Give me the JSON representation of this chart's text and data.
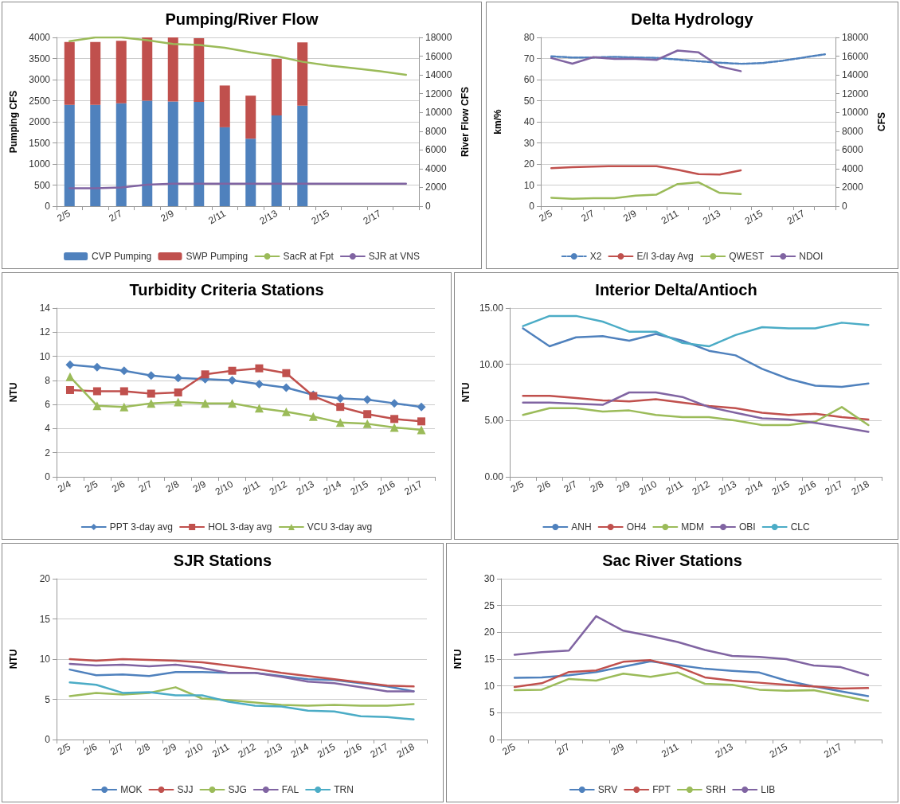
{
  "chart_data": [
    {
      "type": "bar",
      "title": "Pumping/River Flow",
      "ylabel": "Pumping CFS",
      "y2label": "River Flow CFS",
      "stacked": true,
      "grid": "y",
      "legend": "bottom",
      "categories": [
        "2/5",
        null,
        "2/7",
        null,
        "2/9",
        null,
        "2/11",
        null,
        "2/13",
        null,
        "2/15",
        null,
        "2/17",
        null
      ],
      "ylim": [
        0,
        4000
      ],
      "yticks": [
        0,
        500,
        1000,
        1500,
        2000,
        2500,
        3000,
        3500,
        4000
      ],
      "y2lim": [
        0,
        18000
      ],
      "y2ticks": [
        0,
        2000,
        4000,
        6000,
        8000,
        10000,
        12000,
        14000,
        16000,
        18000
      ],
      "series": [
        {
          "name": "CVP Pumping",
          "color": "#4f81bd",
          "values": [
            2400,
            2400,
            2440,
            2500,
            2480,
            2470,
            1870,
            1600,
            2150,
            2380,
            null,
            null,
            null,
            null
          ]
        },
        {
          "name": "SWP Pumping",
          "color": "#c0504d",
          "values": [
            1490,
            1490,
            1480,
            1500,
            1520,
            1510,
            990,
            1020,
            1340,
            1500,
            null,
            null,
            null,
            null
          ]
        },
        {
          "name": "SacR at Fpt",
          "type": "line",
          "axis": "y2",
          "color": "#9bbb59",
          "values": [
            17600,
            18000,
            18000,
            17700,
            17300,
            17200,
            16900,
            16400,
            16000,
            15400,
            15000,
            14700,
            14400,
            14000
          ]
        },
        {
          "name": "SJR at VNS",
          "type": "line",
          "axis": "y2",
          "color": "#8064a2",
          "values": [
            1900,
            1900,
            2000,
            2300,
            2400,
            2400,
            2400,
            2400,
            2400,
            2400,
            2400,
            2400,
            2400,
            2400
          ]
        }
      ]
    },
    {
      "type": "line",
      "title": "Delta Hydrology",
      "ylabel": "km/%",
      "y2label": "CFS",
      "grid": "y",
      "legend": "bottom",
      "categories": [
        "2/5",
        null,
        "2/7",
        null,
        "2/9",
        null,
        "2/11",
        null,
        "2/13",
        null,
        "2/15",
        null,
        "2/17",
        null
      ],
      "ylim": [
        0,
        80
      ],
      "yticks": [
        0,
        10,
        20,
        30,
        40,
        50,
        60,
        70,
        80
      ],
      "y2lim": [
        0,
        18000
      ],
      "y2ticks": [
        0,
        2000,
        4000,
        6000,
        8000,
        10000,
        12000,
        14000,
        16000,
        18000
      ],
      "series": [
        {
          "name": "X2",
          "color": "#4f81bd",
          "line_style": "dashed",
          "values": [
            71,
            70.5,
            70.5,
            70.8,
            70.5,
            70.3,
            69.5,
            68.7,
            68,
            67.5,
            67.8,
            69,
            70.5,
            72
          ]
        },
        {
          "name": "E/I 3-day Avg",
          "color": "#c0504d",
          "values": [
            18,
            18.5,
            18.8,
            19,
            19,
            19,
            17.3,
            15.2,
            15,
            17,
            null,
            null,
            null,
            null
          ]
        },
        {
          "name": "QWEST",
          "color": "#9bbb59",
          "values": [
            4,
            3.5,
            3.8,
            3.8,
            5,
            5.5,
            10.5,
            11.3,
            6.3,
            5.8,
            null,
            null,
            null,
            null
          ]
        },
        {
          "name": "NDOI",
          "color": "#8064a2",
          "axis": "y2",
          "values": [
            15800,
            15200,
            15900,
            15700,
            15700,
            15600,
            16600,
            16400,
            14900,
            14400,
            null,
            null,
            null,
            null
          ]
        }
      ]
    },
    {
      "type": "line",
      "title": "Turbidity Criteria Stations",
      "ylabel": "NTU",
      "grid": "y",
      "legend": "bottom",
      "categories": [
        "2/4",
        "2/5",
        "2/6",
        "2/7",
        "2/8",
        "2/9",
        "2/10",
        "2/11",
        "2/12",
        "2/13",
        "2/14",
        "2/15",
        "2/16",
        "2/17"
      ],
      "ylim": [
        0,
        14
      ],
      "yticks": [
        0,
        2,
        4,
        6,
        8,
        10,
        12,
        14
      ],
      "series": [
        {
          "name": "PPT 3-day avg",
          "color": "#4f81bd",
          "marker": "diamond",
          "values": [
            9.3,
            9.1,
            8.8,
            8.4,
            8.2,
            8.1,
            8.0,
            7.7,
            7.4,
            6.8,
            6.5,
            6.4,
            6.1,
            5.8
          ]
        },
        {
          "name": "HOL 3-day avg",
          "color": "#c0504d",
          "marker": "square",
          "values": [
            7.2,
            7.1,
            7.1,
            6.9,
            7.0,
            8.5,
            8.8,
            9.0,
            8.6,
            6.7,
            5.8,
            5.2,
            4.8,
            4.6
          ]
        },
        {
          "name": "VCU 3-day avg",
          "color": "#9bbb59",
          "marker": "triangle",
          "values": [
            8.3,
            5.9,
            5.8,
            6.1,
            6.2,
            6.1,
            6.1,
            5.7,
            5.4,
            5.0,
            4.5,
            4.4,
            4.1,
            3.9
          ]
        }
      ]
    },
    {
      "type": "line",
      "title": "Interior Delta/Antioch",
      "ylabel": "NTU",
      "grid": "y",
      "legend": "bottom",
      "categories": [
        "2/5",
        "2/6",
        "2/7",
        "2/8",
        "2/9",
        "2/10",
        "2/11",
        "2/12",
        "2/13",
        "2/14",
        "2/15",
        "2/16",
        "2/17",
        "2/18"
      ],
      "ylim": [
        0,
        15
      ],
      "yticks": [
        {
          "value": 0,
          "label": "0.00"
        },
        {
          "value": 5,
          "label": "5.00"
        },
        {
          "value": 10,
          "label": "10.00"
        },
        {
          "value": 15,
          "label": "15.00"
        }
      ],
      "series": [
        {
          "name": "ANH",
          "color": "#4f81bd",
          "values": [
            13.2,
            11.6,
            12.4,
            12.5,
            12.1,
            12.7,
            12.1,
            11.2,
            10.8,
            9.6,
            8.7,
            8.1,
            8.0,
            8.3
          ]
        },
        {
          "name": "OH4",
          "color": "#c0504d",
          "values": [
            7.2,
            7.2,
            7.0,
            6.8,
            6.7,
            6.9,
            6.6,
            6.3,
            6.1,
            5.7,
            5.5,
            5.6,
            5.3,
            5.1
          ]
        },
        {
          "name": "MDM",
          "color": "#9bbb59",
          "values": [
            5.5,
            6.1,
            6.1,
            5.8,
            5.9,
            5.5,
            5.3,
            5.3,
            5.0,
            4.6,
            4.6,
            4.9,
            6.2,
            4.6
          ]
        },
        {
          "name": "OBI",
          "color": "#8064a2",
          "values": [
            6.6,
            6.6,
            6.5,
            6.4,
            7.5,
            7.5,
            7.1,
            6.2,
            5.7,
            5.2,
            5.1,
            4.8,
            4.4,
            4.0
          ]
        },
        {
          "name": "CLC",
          "color": "#4bacc6",
          "values": [
            13.4,
            14.3,
            14.3,
            13.8,
            12.9,
            12.9,
            11.9,
            11.6,
            12.6,
            13.3,
            13.2,
            13.2,
            13.7,
            13.5
          ]
        }
      ]
    },
    {
      "type": "line",
      "title": "SJR Stations",
      "ylabel": "NTU",
      "grid": "y",
      "legend": "bottom",
      "categories": [
        "2/5",
        "2/6",
        "2/7",
        "2/8",
        "2/9",
        "2/10",
        "2/11",
        "2/12",
        "2/13",
        "2/14",
        "2/15",
        "2/16",
        "2/17",
        "2/18"
      ],
      "ylim": [
        0,
        20
      ],
      "yticks": [
        0,
        5,
        10,
        15,
        20
      ],
      "series": [
        {
          "name": "MOK",
          "color": "#4f81bd",
          "values": [
            8.7,
            8.0,
            8.1,
            7.9,
            8.4,
            8.4,
            8.3,
            8.3,
            7.9,
            7.5,
            7.4,
            7.0,
            6.6,
            6.0
          ]
        },
        {
          "name": "SJJ",
          "color": "#c0504d",
          "values": [
            10.0,
            9.8,
            10.0,
            9.9,
            9.8,
            9.6,
            9.2,
            8.8,
            8.3,
            7.9,
            7.5,
            7.1,
            6.7,
            6.6
          ]
        },
        {
          "name": "SJG",
          "color": "#9bbb59",
          "values": [
            5.4,
            5.8,
            5.6,
            5.8,
            6.5,
            5.1,
            4.9,
            4.6,
            4.3,
            4.2,
            4.3,
            4.2,
            4.2,
            4.4
          ]
        },
        {
          "name": "FAL",
          "color": "#8064a2",
          "values": [
            9.4,
            9.2,
            9.3,
            9.1,
            9.3,
            8.9,
            8.3,
            8.3,
            7.8,
            7.2,
            7.0,
            6.5,
            6.0,
            6.0
          ]
        },
        {
          "name": "TRN",
          "color": "#4bacc6",
          "values": [
            7.1,
            6.8,
            5.8,
            5.9,
            5.5,
            5.5,
            4.7,
            4.2,
            4.1,
            3.6,
            3.5,
            2.9,
            2.8,
            2.5
          ]
        }
      ]
    },
    {
      "type": "line",
      "title": "Sac River Stations",
      "ylabel": "NTU",
      "grid": "y",
      "legend": "bottom",
      "categories": [
        "2/5",
        null,
        "2/7",
        null,
        "2/9",
        null,
        "2/11",
        null,
        "2/13",
        null,
        "2/15",
        null,
        "2/17",
        null
      ],
      "ylim": [
        0,
        30
      ],
      "yticks": [
        0,
        5,
        10,
        15,
        20,
        25,
        30
      ],
      "series": [
        {
          "name": "SRV",
          "color": "#4f81bd",
          "values": [
            11.5,
            11.6,
            12.0,
            12.6,
            13.6,
            14.6,
            13.9,
            13.2,
            12.8,
            12.5,
            11.0,
            9.9,
            9.0,
            8.1
          ]
        },
        {
          "name": "FPT",
          "color": "#c0504d",
          "values": [
            9.8,
            10.5,
            12.6,
            12.9,
            14.5,
            14.8,
            13.6,
            11.6,
            11.0,
            10.6,
            10.2,
            9.9,
            9.5,
            9.6
          ]
        },
        {
          "name": "SRH",
          "color": "#9bbb59",
          "values": [
            9.2,
            9.3,
            11.3,
            11.0,
            12.3,
            11.7,
            12.5,
            10.4,
            10.2,
            9.3,
            9.1,
            9.2,
            8.2,
            7.2
          ]
        },
        {
          "name": "LIB",
          "color": "#8064a2",
          "values": [
            15.8,
            16.3,
            16.6,
            23.0,
            20.3,
            19.3,
            18.2,
            16.7,
            15.6,
            15.4,
            15.0,
            13.8,
            13.5,
            12.0
          ]
        }
      ]
    }
  ]
}
